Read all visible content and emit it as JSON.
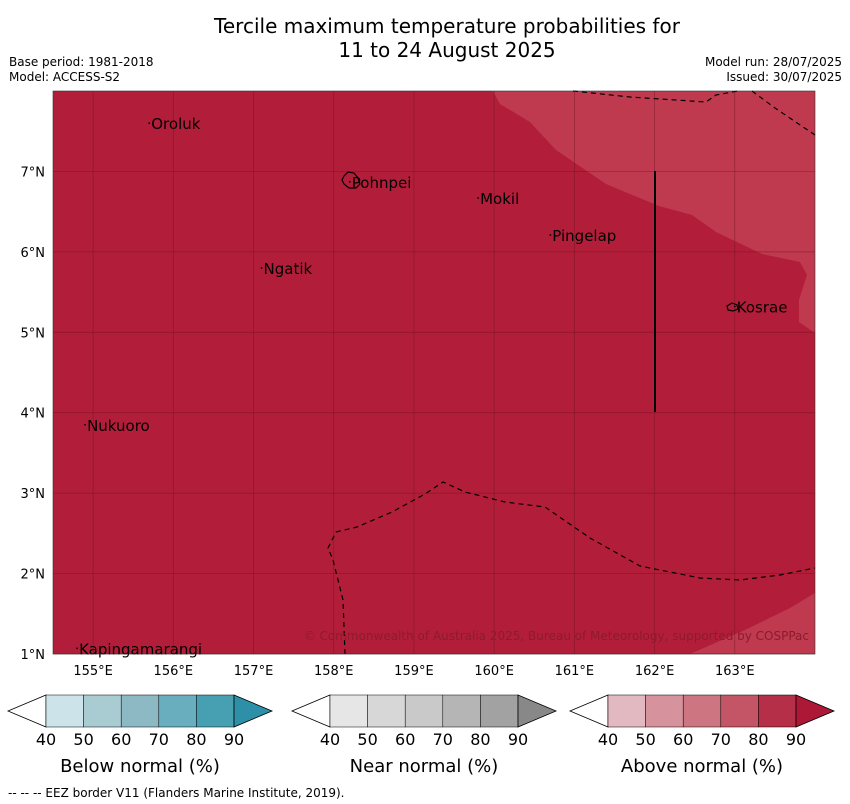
{
  "title": {
    "line1": "Tercile maximum temperature probabilities for",
    "line2": "11 to 24 August 2025"
  },
  "meta": {
    "base_period": "Base period: 1981-2018",
    "model": "Model: ACCESS-S2",
    "model_run": "Model run: 28/07/2025",
    "issued": "Issued: 30/07/2025"
  },
  "map": {
    "lon_ticks": [
      "155°E",
      "156°E",
      "157°E",
      "158°E",
      "159°E",
      "160°E",
      "161°E",
      "162°E",
      "163°E"
    ],
    "lat_ticks": [
      "1°N",
      "2°N",
      "3°N",
      "4°N",
      "5°N",
      "6°N",
      "7°N"
    ],
    "places": [
      {
        "name": "Oroluk",
        "lon": 155.7,
        "lat": 7.6
      },
      {
        "name": "Pohnpei",
        "lon": 158.2,
        "lat": 6.87
      },
      {
        "name": "Mokil",
        "lon": 159.8,
        "lat": 6.67
      },
      {
        "name": "Pingelap",
        "lon": 160.7,
        "lat": 6.21
      },
      {
        "name": "Ngatik",
        "lon": 157.1,
        "lat": 5.8
      },
      {
        "name": "Kosrae",
        "lon": 163.0,
        "lat": 5.32
      },
      {
        "name": "Nukuoro",
        "lon": 154.9,
        "lat": 3.85
      },
      {
        "name": "Kapingamarangi",
        "lon": 154.8,
        "lat": 1.07
      }
    ],
    "base_color": "#b21e39",
    "lighter_color": "#bf3a4f",
    "copyright": "© Commonwealth of Australia 2025, Bureau of Meteorology, supported by COSPPac"
  },
  "legends": [
    {
      "label": "Below normal (%)",
      "ticks": [
        "40",
        "50",
        "60",
        "70",
        "80",
        "90"
      ],
      "colors": [
        "#ffffff",
        "#cbe3e9",
        "#a9cbd2",
        "#8db9c4",
        "#69aebe",
        "#47a0b2",
        "#2e8fa8"
      ]
    },
    {
      "label": "Near normal (%)",
      "ticks": [
        "40",
        "50",
        "60",
        "70",
        "80",
        "90"
      ],
      "colors": [
        "#ffffff",
        "#e6e6e6",
        "#d7d7d7",
        "#c9c9c9",
        "#b5b5b5",
        "#a2a2a2",
        "#888888"
      ]
    },
    {
      "label": "Above normal (%)",
      "ticks": [
        "40",
        "50",
        "60",
        "70",
        "80",
        "90"
      ],
      "colors": [
        "#ffffff",
        "#e2b9c0",
        "#d7939d",
        "#cd7581",
        "#c45566",
        "#b52f48",
        "#ad1836"
      ]
    }
  ],
  "footer": "--  --  -- EEZ border V11 (Flanders Marine Institute, 2019)."
}
